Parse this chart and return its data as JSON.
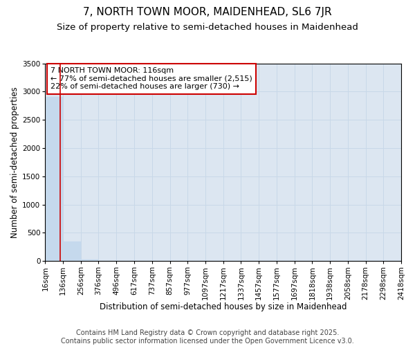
{
  "title": "7, NORTH TOWN MOOR, MAIDENHEAD, SL6 7JR",
  "subtitle": "Size of property relative to semi-detached houses in Maidenhead",
  "xlabel": "Distribution of semi-detached houses by size in Maidenhead",
  "ylabel": "Number of semi-detached properties",
  "footer_line1": "Contains HM Land Registry data © Crown copyright and database right 2025.",
  "footer_line2": "Contains public sector information licensed under the Open Government Licence v3.0.",
  "bins": [
    16,
    136,
    256,
    376,
    496,
    617,
    737,
    857,
    977,
    1097,
    1217,
    1337,
    1457,
    1577,
    1697,
    1818,
    1938,
    2058,
    2178,
    2298,
    2418
  ],
  "bin_labels": [
    "16sqm",
    "136sqm",
    "256sqm",
    "376sqm",
    "496sqm",
    "617sqm",
    "737sqm",
    "857sqm",
    "977sqm",
    "1097sqm",
    "1217sqm",
    "1337sqm",
    "1457sqm",
    "1577sqm",
    "1697sqm",
    "1818sqm",
    "1938sqm",
    "2058sqm",
    "2178sqm",
    "2298sqm",
    "2418sqm"
  ],
  "counts": [
    2900,
    350,
    30,
    4,
    2,
    1,
    0,
    0,
    0,
    0,
    1,
    0,
    0,
    0,
    0,
    0,
    0,
    0,
    0,
    0
  ],
  "bar_color": "#c5d9ed",
  "bar_edge_color": "#c5d9ed",
  "property_line_x": 116,
  "property_line_color": "#cc0000",
  "annotation_line1": "7 NORTH TOWN MOOR: 116sqm",
  "annotation_line2": "← 77% of semi-detached houses are smaller (2,515)",
  "annotation_line3": "22% of semi-detached houses are larger (730) →",
  "annotation_box_color": "#cc0000",
  "ylim": [
    0,
    3500
  ],
  "yticks": [
    0,
    500,
    1000,
    1500,
    2000,
    2500,
    3000,
    3500
  ],
  "grid_color": "#c8d8e8",
  "plot_bg_color": "#dce6f1",
  "title_fontsize": 11,
  "subtitle_fontsize": 9.5,
  "label_fontsize": 8.5,
  "tick_fontsize": 7.5,
  "annotation_fontsize": 8,
  "footer_fontsize": 7
}
